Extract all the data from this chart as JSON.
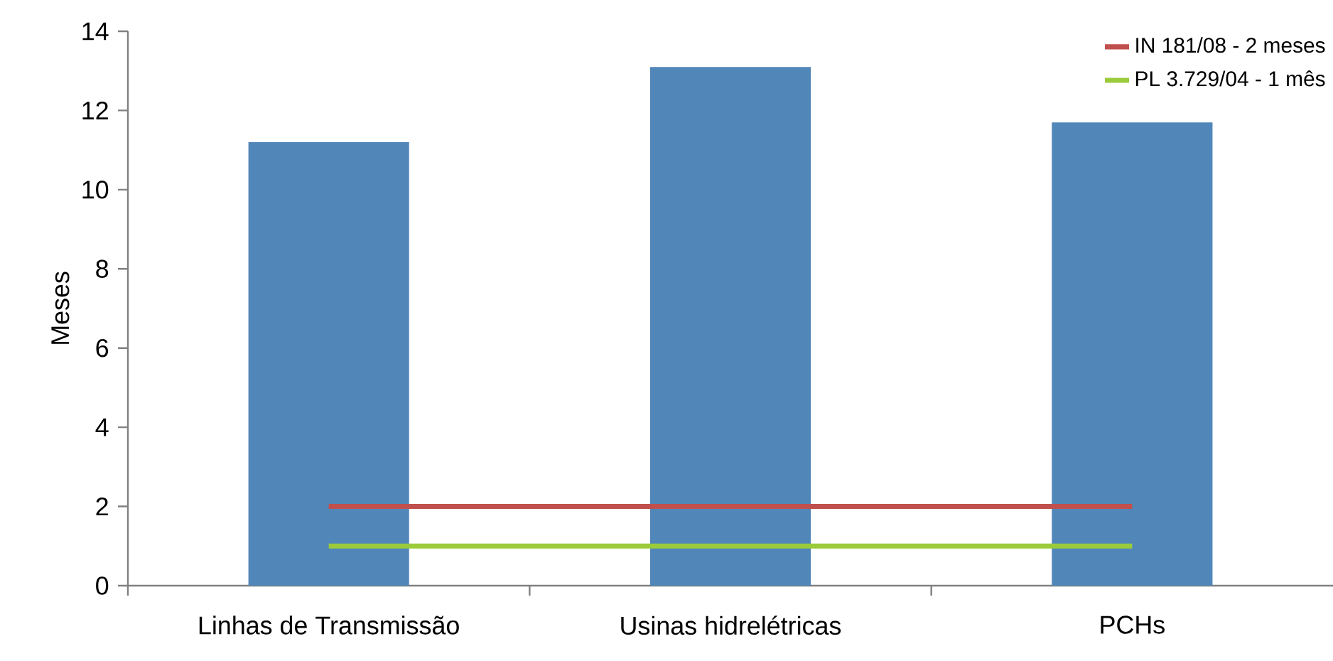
{
  "chart_data": {
    "type": "bar",
    "ylabel": "Meses",
    "categories": [
      "Linhas de Transmissão",
      "Usinas hidrelétricas",
      "PCHs"
    ],
    "series": [
      {
        "color": "#5186b8",
        "values": [
          11.2,
          13.1,
          11.7
        ]
      },
      {
        "type": "line",
        "name": "IN 181/08 - 2 meses",
        "color": "#c0504d",
        "values": [
          2,
          2,
          2
        ]
      },
      {
        "type": "line",
        "name": "PL 3.729/04 - 1 mês",
        "color": "#9bcb3b",
        "values": [
          1,
          1,
          1
        ]
      }
    ],
    "ylim": [
      0,
      14
    ],
    "yticks": [
      0,
      2,
      4,
      6,
      8,
      10,
      12,
      14
    ],
    "legend": "top right",
    "grid": false
  }
}
